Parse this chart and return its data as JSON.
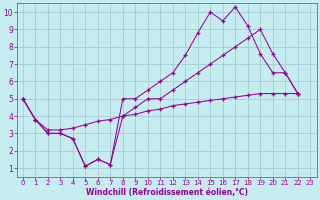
{
  "xlabel": "Windchill (Refroidissement éolien,°C)",
  "bg_color": "#c5ecee",
  "grid_color": "#9dc8cc",
  "line_color": "#990099",
  "xlim": [
    -0.5,
    23.5
  ],
  "ylim": [
    0.5,
    10.5
  ],
  "xticks": [
    0,
    1,
    2,
    3,
    4,
    5,
    6,
    7,
    8,
    9,
    10,
    11,
    12,
    13,
    14,
    15,
    16,
    17,
    18,
    19,
    20,
    21,
    22,
    23
  ],
  "yticks": [
    1,
    2,
    3,
    4,
    5,
    6,
    7,
    8,
    9,
    10
  ],
  "line1_x": [
    0,
    1,
    2,
    3,
    4,
    5,
    6,
    7,
    8,
    9,
    10,
    11,
    12,
    13,
    14,
    15,
    16,
    17,
    18,
    19,
    20,
    21,
    22
  ],
  "line1_y": [
    5.0,
    3.8,
    3.0,
    3.0,
    2.7,
    1.1,
    1.5,
    1.2,
    5.0,
    5.0,
    5.5,
    6.0,
    6.5,
    7.5,
    8.8,
    10.0,
    9.5,
    10.3,
    9.2,
    7.6,
    6.5,
    6.5,
    5.3
  ],
  "line2_x": [
    0,
    1,
    2,
    3,
    4,
    5,
    6,
    7,
    8,
    9,
    10,
    11,
    12,
    13,
    14,
    15,
    16,
    17,
    18,
    19,
    20,
    21,
    22
  ],
  "line2_y": [
    5.0,
    3.8,
    3.0,
    3.0,
    2.7,
    1.1,
    1.5,
    1.2,
    4.0,
    4.5,
    5.0,
    5.0,
    5.5,
    6.0,
    6.5,
    7.0,
    7.5,
    8.0,
    8.5,
    9.0,
    7.6,
    6.5,
    5.3
  ],
  "line3_x": [
    0,
    1,
    2,
    3,
    4,
    5,
    6,
    7,
    8,
    9,
    10,
    11,
    12,
    13,
    14,
    15,
    16,
    17,
    18,
    19,
    20,
    21,
    22
  ],
  "line3_y": [
    5.0,
    3.8,
    3.2,
    3.2,
    3.3,
    3.5,
    3.7,
    3.8,
    4.0,
    4.1,
    4.3,
    4.4,
    4.6,
    4.7,
    4.8,
    4.9,
    5.0,
    5.1,
    5.2,
    5.3,
    5.3,
    5.3,
    5.3
  ]
}
